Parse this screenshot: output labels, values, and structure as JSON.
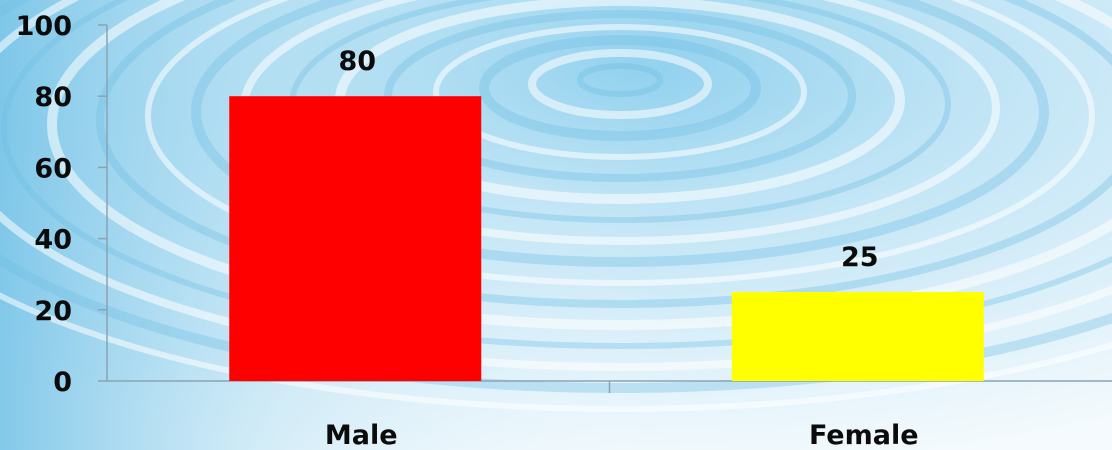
{
  "chart_data": {
    "type": "bar",
    "categories": [
      "Male",
      "Female"
    ],
    "values": [
      80,
      25
    ],
    "data_labels": [
      "80",
      "25"
    ],
    "bar_colors": [
      "#ff0000",
      "#ffff00"
    ],
    "ylim": [
      0,
      100
    ],
    "yticks": [
      "0",
      "20",
      "40",
      "60",
      "80",
      "100"
    ],
    "grid": false,
    "legend": "none",
    "axis_color": "#8aa3b3",
    "background": "water ripple"
  }
}
